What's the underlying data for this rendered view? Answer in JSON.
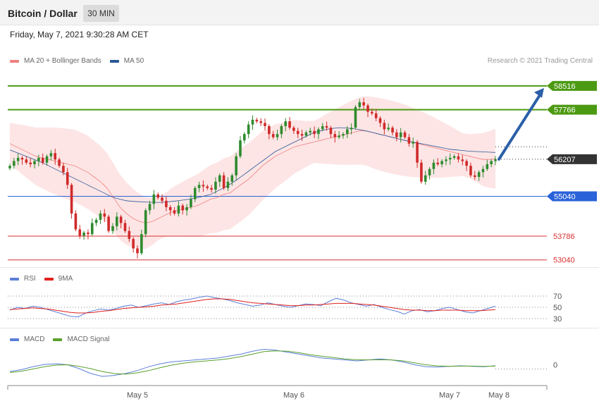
{
  "header": {
    "title": "Bitcoin / Dollar",
    "timeframe": "30 MIN"
  },
  "datetime": "Friday, May 7, 2021 9:30:28 AM CET",
  "copyright": "Research © 2021 Trading Central",
  "legends": {
    "price": [
      {
        "label": "MA 20 + Bollinger Bands",
        "color": "#f08080"
      },
      {
        "label": "MA 50",
        "color": "#2b5797"
      }
    ],
    "rsi": [
      {
        "label": "RSI",
        "color": "#5b7fd8"
      },
      {
        "label": "9MA",
        "color": "#e0201c"
      }
    ],
    "macd": [
      {
        "label": "MACD",
        "color": "#5b7fd8"
      },
      {
        "label": "MACD Signal",
        "color": "#5aa02c"
      }
    ]
  },
  "chart_data": [
    {
      "type": "candlestick",
      "panel": "price",
      "instrument": "Bitcoin / Dollar",
      "timeframe": "30 MIN",
      "ylim": [
        52900,
        59000
      ],
      "x_ticks": [
        "May 5",
        "May 6",
        "May 7",
        "May 8"
      ],
      "levels": [
        {
          "value": 58516,
          "label": "58516",
          "color": "#4c9a12",
          "kind": "resistance"
        },
        {
          "value": 57766,
          "label": "57766",
          "color": "#4c9a12",
          "kind": "resistance"
        },
        {
          "value": 56207,
          "label": "56207",
          "color": "#333333",
          "kind": "last"
        },
        {
          "value": 55040,
          "label": "55040",
          "color": "#2962d9",
          "kind": "pivot"
        },
        {
          "value": 53786,
          "label": "53786",
          "color": "#d93030",
          "kind": "support"
        },
        {
          "value": 53040,
          "label": "53040",
          "color": "#d93030",
          "kind": "support"
        }
      ],
      "trend_arrow": {
        "from": 56207,
        "to": 58516,
        "color": "#2b5fa8"
      },
      "close_series": [
        56000,
        56150,
        56250,
        56200,
        56100,
        56050,
        56150,
        56250,
        56100,
        56300,
        56400,
        56200,
        56000,
        55800,
        55400,
        54500,
        54000,
        53800,
        53900,
        53850,
        54200,
        54300,
        54500,
        54400,
        53950,
        54100,
        54400,
        54200,
        53950,
        53700,
        53400,
        53250,
        53850,
        54600,
        54800,
        55100,
        55000,
        54900,
        54700,
        54600,
        54500,
        54750,
        54600,
        54700,
        54950,
        55300,
        55400,
        55350,
        55300,
        55250,
        55500,
        55700,
        55300,
        55500,
        55700,
        56300,
        56800,
        57000,
        57300,
        57450,
        57400,
        57350,
        57250,
        57000,
        56900,
        57000,
        57250,
        57400,
        57200,
        57100,
        57000,
        56950,
        57050,
        57100,
        57000,
        57150,
        57250,
        57200,
        57000,
        56900,
        56950,
        57000,
        57150,
        57200,
        57850,
        58000,
        57900,
        57700,
        57650,
        57500,
        57350,
        57150,
        57200,
        57050,
        56900,
        57050,
        56900,
        56700,
        56750,
        56100,
        55500,
        55700,
        55900,
        56100,
        56050,
        56150,
        56200,
        56250,
        56300,
        56200,
        56150,
        56000,
        55700,
        55650,
        55800,
        55900,
        56050,
        56150,
        56207
      ],
      "ma20": [
        56700,
        56600,
        56500,
        56400,
        56300,
        56250,
        56200,
        56150,
        56100,
        56050,
        56000,
        55900,
        55800,
        55650,
        55500,
        55300,
        55000,
        54700,
        54500,
        54350,
        54250,
        54200,
        54250,
        54350,
        54450,
        54550,
        54600,
        54650,
        54700,
        54750,
        54850,
        54950,
        55000,
        55100,
        55150,
        55300,
        55450,
        55600,
        55800,
        56000,
        56150,
        56300,
        56400,
        56500,
        56600,
        56650,
        56700,
        56750,
        56800,
        56850,
        56900,
        56950,
        57000,
        57050,
        57100,
        57100,
        57050,
        57000,
        56950,
        56900,
        56850,
        56800,
        56750,
        56700,
        56650,
        56600,
        56550,
        56500,
        56450,
        56400,
        56350,
        56300,
        56250,
        56200,
        56200,
        56220
      ],
      "ma50": [
        56500,
        56420,
        56340,
        56260,
        56180,
        56100,
        56000,
        55900,
        55800,
        55700,
        55600,
        55500,
        55400,
        55300,
        55200,
        55100,
        55000,
        54950,
        54900,
        54880,
        54870,
        54860,
        54850,
        54850,
        54860,
        54880,
        54900,
        54930,
        54960,
        55000,
        55050,
        55100,
        55200,
        55300,
        55420,
        55550,
        55700,
        55850,
        56000,
        56150,
        56300,
        56450,
        56550,
        56650,
        56750,
        56850,
        56950,
        57050,
        57100,
        57150,
        57180,
        57200,
        57190,
        57170,
        57140,
        57100,
        57050,
        57000,
        56950,
        56900,
        56850,
        56800,
        56760,
        56720,
        56680,
        56640,
        56600,
        56560,
        56520,
        56500,
        56480,
        56460,
        56450,
        56440,
        56430,
        56420
      ]
    },
    {
      "type": "line",
      "panel": "rsi",
      "ylim": [
        20,
        80
      ],
      "y_ticks": [
        70,
        50,
        30
      ],
      "series": [
        {
          "name": "RSI",
          "color": "#5b7fd8",
          "values": [
            45,
            50,
            48,
            52,
            50,
            46,
            42,
            38,
            34,
            33,
            40,
            44,
            47,
            45,
            48,
            52,
            54,
            50,
            53,
            56,
            58,
            55,
            60,
            63,
            65,
            68,
            70,
            67,
            65,
            62,
            58,
            55,
            52,
            54,
            58,
            55,
            52,
            50,
            53,
            56,
            55,
            53,
            60,
            66,
            63,
            58,
            55,
            52,
            55,
            50,
            46,
            43,
            38,
            44,
            46,
            42,
            44,
            48,
            50,
            46,
            42,
            40,
            44,
            48,
            52
          ]
        },
        {
          "name": "9MA",
          "color": "#e0201c",
          "values": [
            46,
            47,
            48,
            49,
            48,
            47,
            45,
            43,
            41,
            40,
            40,
            41,
            43,
            44,
            46,
            48,
            49,
            50,
            51,
            52,
            54,
            55,
            56,
            58,
            60,
            62,
            64,
            65,
            65,
            64,
            62,
            60,
            58,
            57,
            56,
            55,
            54,
            53,
            53,
            54,
            54,
            55,
            56,
            57,
            57,
            57,
            56,
            55,
            54,
            52,
            50,
            48,
            46,
            45,
            45,
            44,
            44,
            45,
            45,
            45,
            44,
            44,
            44,
            45,
            46
          ]
        }
      ]
    },
    {
      "type": "line",
      "panel": "macd",
      "ylim": [
        -1,
        1
      ],
      "y_ticks": [
        0
      ],
      "series": [
        {
          "name": "MACD",
          "color": "#5b7fd8",
          "values": [
            -0.35,
            -0.25,
            -0.1,
            0.02,
            0.05,
            0.0,
            -0.2,
            -0.45,
            -0.6,
            -0.55,
            -0.45,
            -0.3,
            -0.1,
            0.05,
            0.15,
            0.2,
            0.25,
            0.3,
            0.35,
            0.45,
            0.55,
            0.7,
            0.8,
            0.75,
            0.65,
            0.55,
            0.45,
            0.35,
            0.3,
            0.25,
            0.2,
            0.25,
            0.3,
            0.25,
            0.15,
            0.0,
            -0.1,
            -0.12,
            -0.08,
            -0.05,
            -0.08,
            -0.1,
            -0.05
          ]
        },
        {
          "name": "MACD Signal",
          "color": "#5aa02c",
          "values": [
            -0.4,
            -0.33,
            -0.22,
            -0.1,
            -0.02,
            0.0,
            -0.08,
            -0.2,
            -0.35,
            -0.45,
            -0.48,
            -0.42,
            -0.3,
            -0.15,
            -0.02,
            0.08,
            0.15,
            0.2,
            0.25,
            0.32,
            0.42,
            0.55,
            0.68,
            0.72,
            0.7,
            0.62,
            0.52,
            0.44,
            0.37,
            0.3,
            0.26,
            0.25,
            0.26,
            0.25,
            0.2,
            0.1,
            0.0,
            -0.06,
            -0.08,
            -0.07,
            -0.07,
            -0.08,
            -0.07
          ]
        }
      ]
    }
  ]
}
